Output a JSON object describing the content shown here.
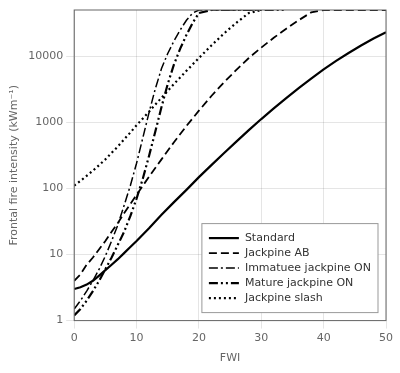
{
  "chart_data": {
    "type": "line",
    "xlabel": "FWI",
    "ylabel": "Frontal fire intensity (kWm⁻¹)",
    "log": "y",
    "xlim": [
      0,
      50
    ],
    "ylim": [
      1,
      50000
    ],
    "xticks": [
      0,
      10,
      20,
      30,
      40,
      50
    ],
    "yticks": [
      1,
      10,
      100,
      1000,
      10000
    ],
    "grid": true,
    "legend": "lower right",
    "series": [
      {
        "name": "Standard",
        "color": "black",
        "line_style": "solid",
        "x": [
          0,
          1,
          2,
          3,
          4,
          5,
          6,
          7,
          8,
          9,
          10,
          12,
          14,
          16,
          18,
          20,
          22,
          24,
          26,
          28,
          30,
          32,
          34,
          36,
          38,
          40,
          42,
          44,
          46,
          48,
          50
        ],
        "values": [
          3.0,
          3.2,
          3.5,
          4.0,
          4.8,
          5.8,
          7.0,
          8.5,
          10.5,
          13,
          16,
          25,
          40,
          62,
          95,
          148,
          225,
          340,
          510,
          760,
          1120,
          1620,
          2320,
          3280,
          4580,
          6300,
          8500,
          11200,
          14500,
          18500,
          23000
        ]
      },
      {
        "name": "Jackpine AB",
        "color": "black",
        "line_style": "dashed",
        "x": [
          0,
          1,
          2,
          3,
          4,
          5,
          6,
          7,
          8,
          9,
          10,
          12,
          14,
          16,
          18,
          20,
          22,
          24,
          26,
          28,
          30,
          32,
          34,
          36,
          38,
          40,
          42,
          44,
          46,
          48,
          50
        ],
        "values": [
          4,
          5,
          7,
          9,
          12,
          16,
          22,
          30,
          42,
          58,
          80,
          150,
          275,
          500,
          880,
          1500,
          2500,
          4000,
          6200,
          9400,
          13500,
          19000,
          26000,
          35000,
          46000,
          50000,
          50000,
          50000,
          50000,
          50000,
          50000
        ]
      },
      {
        "name": "Immatuee jackpine ON",
        "color": "black",
        "line_style": "dashdot",
        "x": [
          0,
          1,
          2,
          3,
          4,
          5,
          6,
          7,
          8,
          9,
          10,
          11,
          12,
          13,
          14,
          15,
          16,
          17,
          18,
          19,
          20,
          22,
          24,
          26,
          28,
          30
        ],
        "values": [
          1.5,
          2.0,
          2.8,
          4.0,
          6.0,
          9.5,
          16,
          28,
          55,
          110,
          240,
          580,
          1400,
          3200,
          6500,
          11000,
          17000,
          25000,
          35000,
          45000,
          50000,
          50000,
          50000,
          50000,
          50000,
          50000
        ]
      },
      {
        "name": "Mature jackpine ON",
        "color": "black",
        "line_style": "dashdotdot",
        "x": [
          0,
          1,
          2,
          3,
          4,
          5,
          6,
          7,
          8,
          9,
          10,
          11,
          12,
          13,
          14,
          15,
          16,
          17,
          18,
          19,
          20,
          22,
          24,
          26,
          28,
          30,
          32,
          34
        ],
        "values": [
          1.2,
          1.5,
          2.0,
          2.8,
          4.0,
          6.0,
          9.0,
          14,
          22,
          38,
          70,
          140,
          310,
          720,
          1700,
          3800,
          7500,
          13000,
          21000,
          32000,
          45000,
          50000,
          50000,
          50000,
          50000,
          50000,
          50000,
          50000
        ]
      },
      {
        "name": "Jackpine slash",
        "color": "black",
        "line_style": "dotted",
        "x": [
          0,
          1,
          2,
          3,
          4,
          5,
          6,
          7,
          8,
          9,
          10,
          12,
          14,
          16,
          18,
          20,
          22,
          24,
          26,
          28,
          30
        ],
        "values": [
          110,
          130,
          155,
          185,
          225,
          275,
          345,
          430,
          550,
          700,
          900,
          1450,
          2350,
          3800,
          6000,
          9400,
          14500,
          22000,
          32000,
          45000,
          50000
        ]
      }
    ]
  }
}
